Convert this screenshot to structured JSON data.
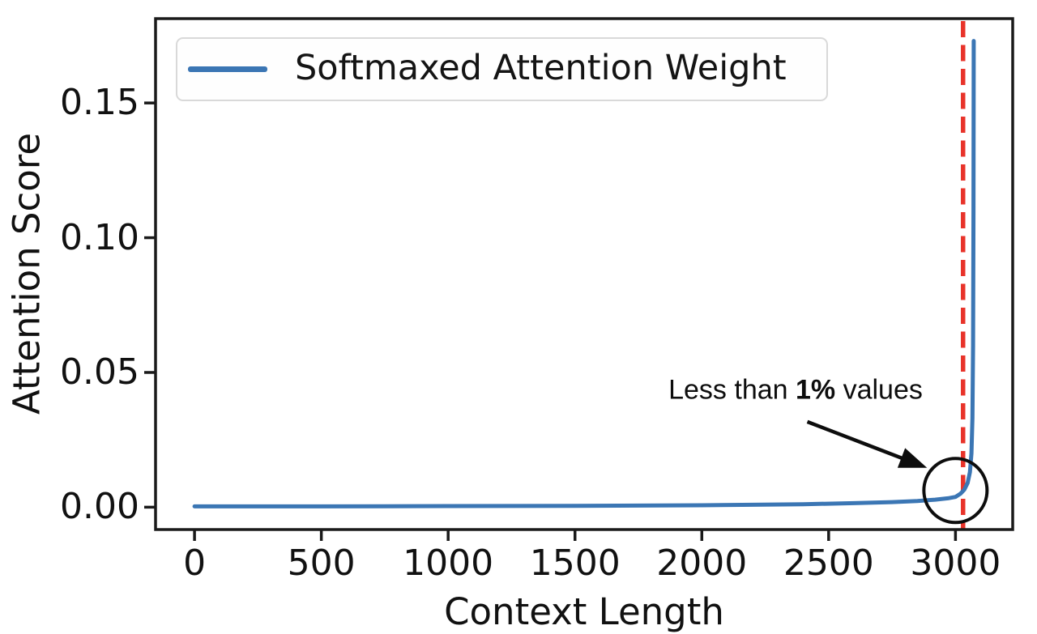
{
  "figure": {
    "y_axis_label": "Attention Score",
    "x_axis_label": "Context Length",
    "legend": {
      "label": "Softmaxed Attention Weight"
    },
    "annotation": {
      "pre": "Less than ",
      "bold": "1%",
      "post": " values"
    }
  },
  "colors": {
    "series_blue": "#3b76b4",
    "vline_red": "#e8332a",
    "spine_black": "#1a1a1a",
    "annotation_black": "#0d0d0d",
    "legend_border": "#d9d9d9"
  },
  "chart_data": {
    "type": "line",
    "title": "",
    "xlabel": "Context Length",
    "ylabel": "Attention Score",
    "xlim": [
      -153.6,
      3225.6
    ],
    "ylim": [
      -0.0083,
      0.1813
    ],
    "grid": false,
    "legend_position": "upper left",
    "x_ticks": {
      "values": [
        0,
        500,
        1000,
        1500,
        2000,
        2500,
        3000
      ],
      "labels": [
        "0",
        "500",
        "1000",
        "1500",
        "2000",
        "2500",
        "3000"
      ]
    },
    "y_ticks": {
      "values": [
        0.0,
        0.05,
        0.1,
        0.15
      ],
      "labels": [
        "0.00",
        "0.05",
        "0.10",
        "0.15"
      ]
    },
    "series": [
      {
        "name": "Softmaxed Attention Weight",
        "color": "#3b76b4",
        "line_width": 5,
        "x": [
          0,
          250,
          500,
          750,
          1000,
          1250,
          1500,
          1750,
          2000,
          2200,
          2400,
          2600,
          2750,
          2850,
          2920,
          2970,
          3000,
          3020,
          3035,
          3048,
          3057,
          3063,
          3067,
          3069.5,
          3071,
          3072
        ],
        "y": [
          0.0003,
          0.0003,
          0.0003,
          0.00035,
          0.0004,
          0.00045,
          0.0005,
          0.0006,
          0.0007,
          0.0009,
          0.0011,
          0.0015,
          0.0019,
          0.0023,
          0.0028,
          0.0033,
          0.0038,
          0.005,
          0.0065,
          0.009,
          0.013,
          0.02,
          0.033,
          0.06,
          0.11,
          0.173
        ]
      }
    ],
    "vline": {
      "x": 3030,
      "color": "#e8332a",
      "style": "dashed",
      "width": 5.5,
      "dash": [
        20,
        9.5
      ]
    },
    "annotations": {
      "text": {
        "content": "Less than 1% values",
        "bold_part": "1%",
        "x": 2368,
        "y": 0.0431
      },
      "arrow": {
        "from_x": 2416,
        "from_y": 0.0317,
        "to_x": 2888,
        "to_y": 0.0146,
        "color": "#0d0d0d"
      },
      "circle": {
        "x": 3000,
        "y": 0.0062,
        "radius_px": 39,
        "color": "#0d0d0d"
      }
    }
  }
}
